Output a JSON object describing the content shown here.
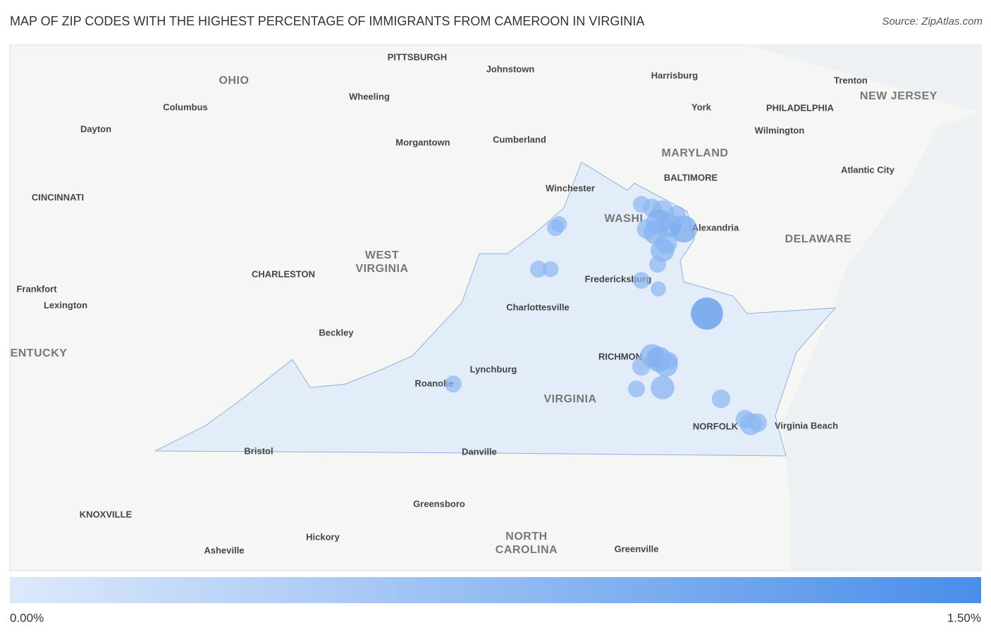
{
  "header": {
    "title": "MAP OF ZIP CODES WITH THE HIGHEST PERCENTAGE OF IMMIGRANTS FROM CAMEROON IN VIRGINIA",
    "source": "Source: ZipAtlas.com"
  },
  "places": [
    "PITTSBURGH",
    "Johnstown",
    "Harrisburg",
    "Trenton",
    "OHIO",
    "NEW JERSEY",
    "Wheeling",
    "Columbus",
    "York",
    "PHILADELPHIA",
    "Dayton",
    "Wilmington",
    "Morgantown",
    "Cumberland",
    "MARYLAND",
    "BALTIMORE",
    "Atlantic City",
    "Winchester",
    "CINCINNATI",
    "WASHI",
    "Alexandria",
    "DELAWARE",
    "WEST",
    "VIRGINIA",
    "CHARLESTON",
    "Fredericksburg",
    "Frankfort",
    "Lexington",
    "Charlottesville",
    "Beckley",
    "ENTUCKY",
    "RICHMON",
    "Lynchburg",
    "Roanoke",
    "VIRGINIA",
    "NORFOLK",
    "Virginia Beach",
    "Bristol",
    "Danville",
    "Greensboro",
    "KNOXVILLE",
    "NORTH",
    "CAROLINA",
    "Hickory",
    "Asheville",
    "Greenville"
  ],
  "bubbles": [
    0.5,
    0.45,
    0.5,
    0.45,
    0.5,
    0.6,
    0.8,
    1.0,
    0.7,
    0.9,
    1.1,
    0.6,
    0.9,
    0.8,
    0.9,
    0.5,
    0.5,
    0.4,
    1.4,
    0.9,
    1.0,
    0.9,
    0.6,
    0.5,
    0.5,
    0.9,
    0.6,
    0.6,
    0.8,
    0.6,
    0.5
  ],
  "legend": {
    "min": {
      "value": 0,
      "label": "0.00%"
    },
    "max": {
      "value": 1.5,
      "label": "1.50%"
    },
    "colors": [
      "#dde9fb",
      "#4a8ee9"
    ]
  }
}
